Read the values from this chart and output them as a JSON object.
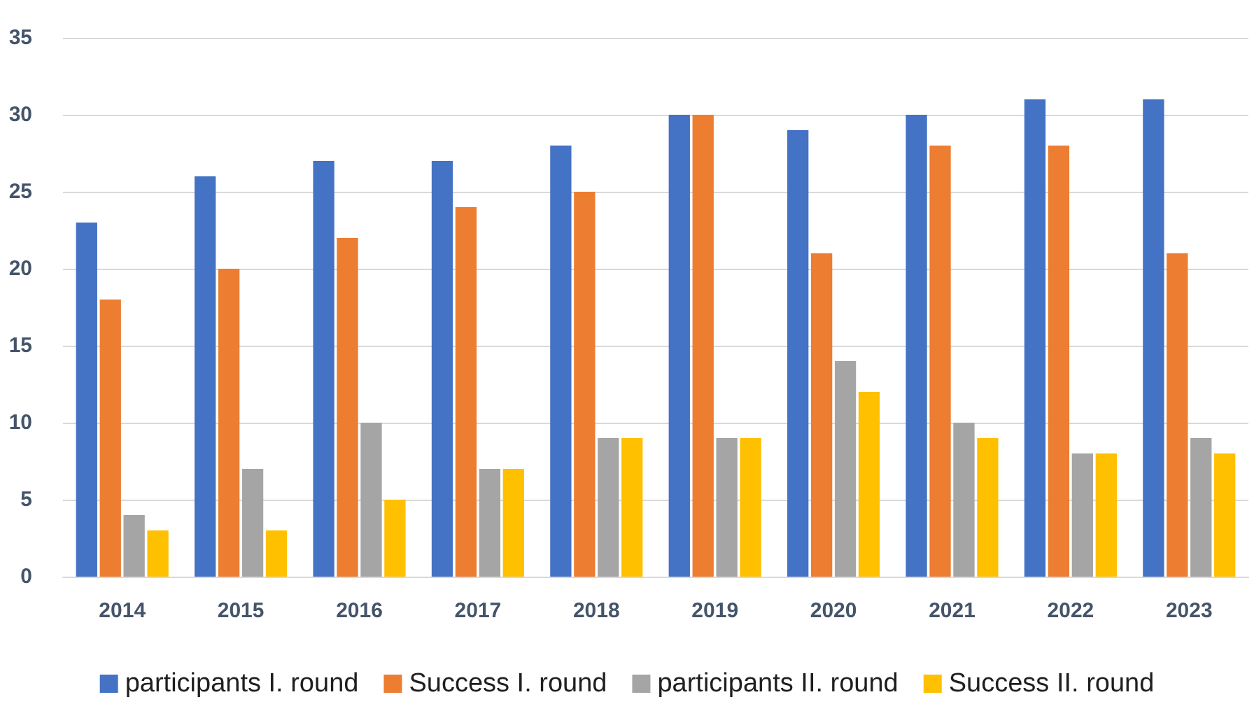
{
  "chart_data": {
    "type": "bar",
    "categories": [
      "2014",
      "2015",
      "2016",
      "2017",
      "2018",
      "2019",
      "2020",
      "2021",
      "2022",
      "2023"
    ],
    "series": [
      {
        "name": "participants I. round",
        "color": "#4472c4",
        "values": [
          23,
          26,
          27,
          27,
          28,
          30,
          29,
          30,
          31,
          31
        ]
      },
      {
        "name": "Success I. round",
        "color": "#ed7d31",
        "values": [
          18,
          20,
          22,
          24,
          25,
          30,
          21,
          28,
          28,
          21
        ]
      },
      {
        "name": "participants II. round",
        "color": "#a5a5a5",
        "values": [
          4,
          7,
          10,
          7,
          9,
          9,
          14,
          10,
          8,
          9
        ]
      },
      {
        "name": "Success II. round",
        "color": "#ffc000",
        "values": [
          3,
          3,
          5,
          7,
          9,
          9,
          12,
          9,
          8,
          8
        ]
      }
    ],
    "ylim": [
      0,
      35
    ],
    "yticks": [
      0,
      5,
      10,
      15,
      20,
      25,
      30,
      35
    ],
    "grid": "y",
    "legend": "bottom"
  }
}
